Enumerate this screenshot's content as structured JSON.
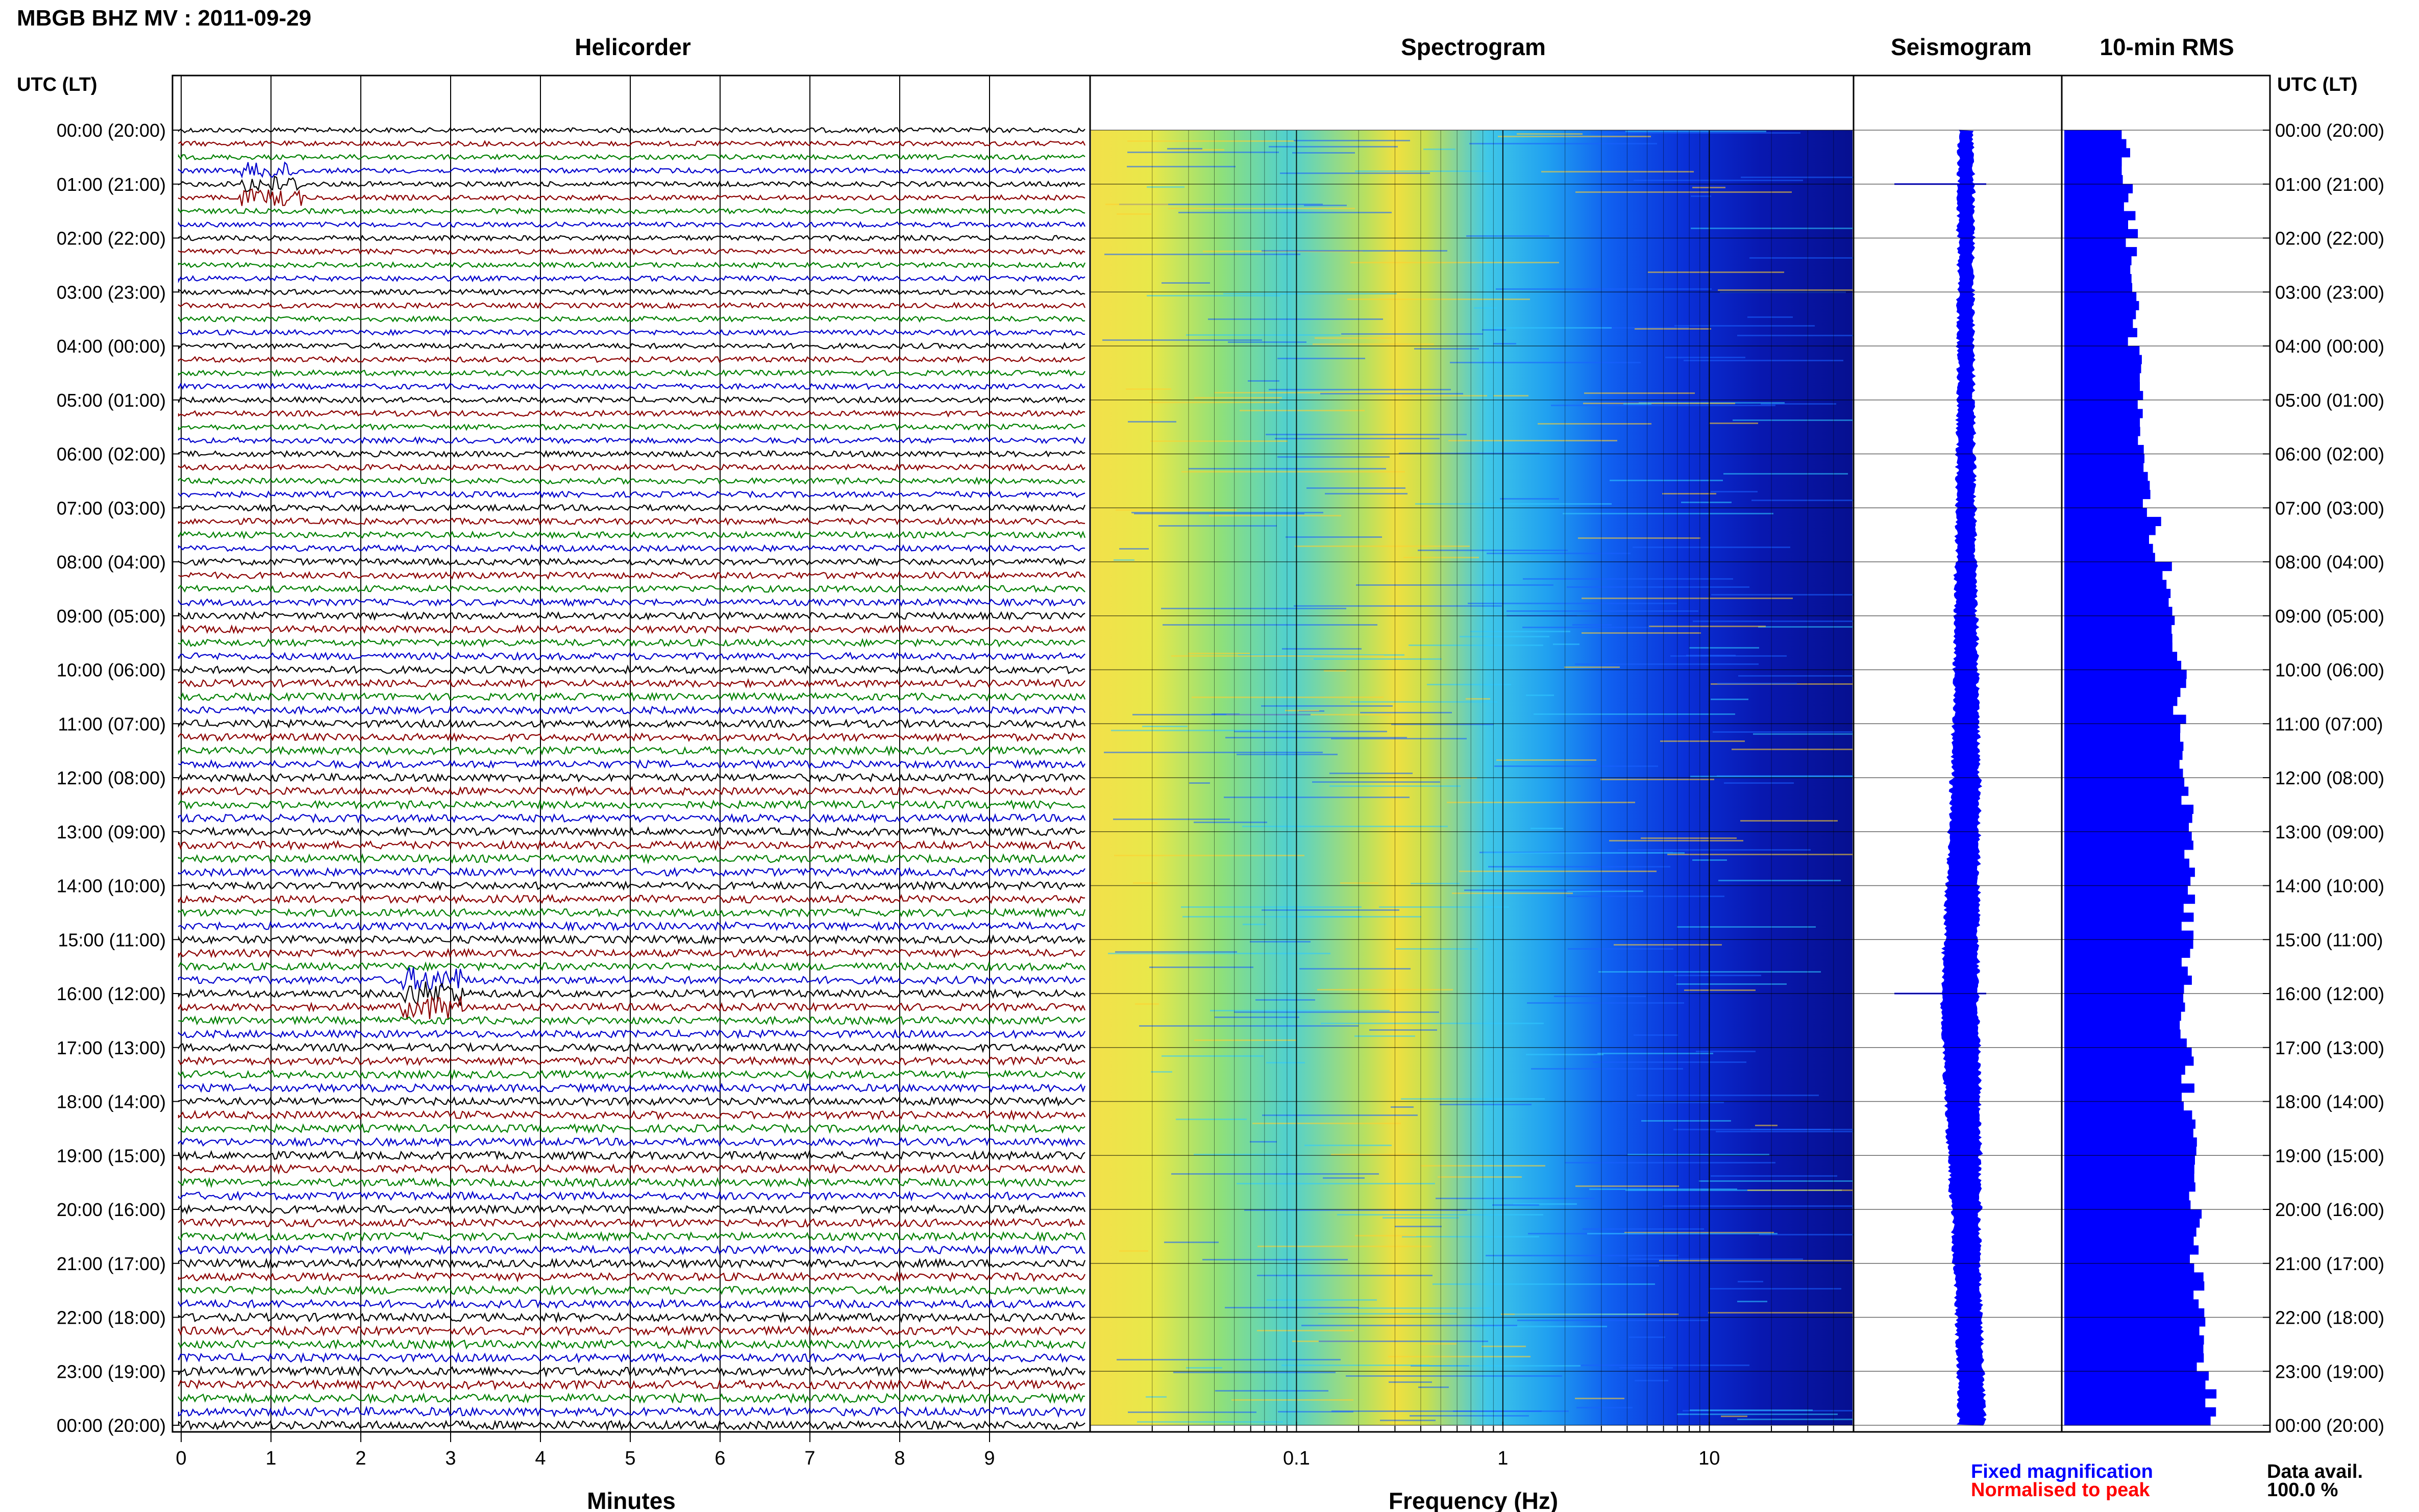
{
  "page_title": "MBGB BHZ MV : 2011-09-29",
  "panel_titles": {
    "helicorder": "Helicorder",
    "spectrogram": "Spectrogram",
    "seismogram": "Seismogram",
    "rms": "10-min RMS"
  },
  "axis": {
    "time_header": "UTC (LT)",
    "helicorder_xlabel": "Minutes",
    "spectrogram_xlabel": "Frequency (Hz)",
    "minute_ticks": [
      "0",
      "1",
      "2",
      "3",
      "4",
      "5",
      "6",
      "7",
      "8",
      "9"
    ],
    "freq_ticks": [
      {
        "value": 0.1,
        "label": "0.1"
      },
      {
        "value": 1,
        "label": "1"
      },
      {
        "value": 10,
        "label": "10"
      }
    ],
    "freq_range": [
      0.01,
      50
    ]
  },
  "time_labels": [
    "00:00 (20:00)",
    "01:00 (21:00)",
    "02:00 (22:00)",
    "03:00 (23:00)",
    "04:00 (00:00)",
    "05:00 (01:00)",
    "06:00 (02:00)",
    "07:00 (03:00)",
    "08:00 (04:00)",
    "09:00 (05:00)",
    "10:00 (06:00)",
    "11:00 (07:00)",
    "12:00 (08:00)",
    "13:00 (09:00)",
    "14:00 (10:00)",
    "15:00 (11:00)",
    "16:00 (12:00)",
    "17:00 (13:00)",
    "18:00 (14:00)",
    "19:00 (15:00)",
    "20:00 (16:00)",
    "21:00 (17:00)",
    "22:00 (18:00)",
    "23:00 (19:00)",
    "00:00 (20:00)"
  ],
  "legend": {
    "fixed": "Fixed magnification",
    "normalised": "Normalised to peak",
    "fixed_color": "#0000ff",
    "normalised_color": "#ff0000"
  },
  "data_avail": {
    "label": "Data avail.",
    "value": "100.0 %"
  },
  "colors": {
    "trace_cycle": [
      "#000000",
      "#8b0000",
      "#008000",
      "#0000cd"
    ],
    "seismogram": "#0000ff",
    "rms_bar": "#0000ff"
  },
  "chart_data": {
    "type": "helicorder",
    "traces_per_hour": 4,
    "hours": 24,
    "rms_10min_relative_by_hour": [
      0.3,
      0.31,
      0.32,
      0.33,
      0.35,
      0.37,
      0.39,
      0.42,
      0.47,
      0.51,
      0.54,
      0.56,
      0.58,
      0.59,
      0.58,
      0.57,
      0.56,
      0.58,
      0.59,
      0.6,
      0.61,
      0.62,
      0.64,
      0.68
    ],
    "seismogram_envelope_by_hour": [
      0.1,
      0.11,
      0.1,
      0.11,
      0.11,
      0.12,
      0.13,
      0.14,
      0.16,
      0.18,
      0.19,
      0.21,
      0.24,
      0.26,
      0.28,
      0.3,
      0.31,
      0.3,
      0.28,
      0.25,
      0.22,
      0.2,
      0.2,
      0.21
    ],
    "spectrogram_peak_frequency_hz": 0.45,
    "notable_events": [
      {
        "time_label": "01:00",
        "minute": 1.0
      },
      {
        "time_label": "16:00",
        "minute": 2.8
      }
    ]
  }
}
